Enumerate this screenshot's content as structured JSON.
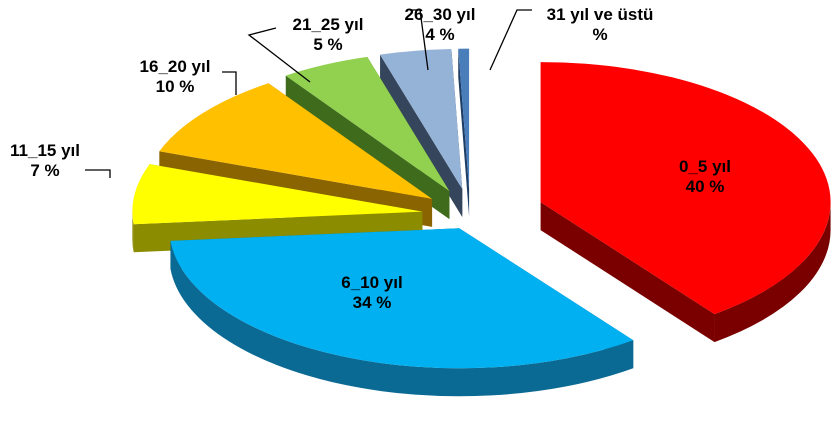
{
  "chart_data": {
    "type": "pie",
    "variant": "3d-exploded",
    "title": "",
    "unit": "%",
    "slices": [
      {
        "label": "0_5 yıl",
        "value": 40,
        "display_value": "40 %",
        "color": "#FF0000",
        "side_color": "#7A0000",
        "label_placement": "inside"
      },
      {
        "label": "6_10 yıl",
        "value": 34,
        "display_value": "34 %",
        "color": "#00B0F0",
        "side_color": "#0B6A93",
        "label_placement": "inside"
      },
      {
        "label": "11_15 yıl",
        "value": 7,
        "display_value": "7 %",
        "color": "#FFFF00",
        "side_color": "#8C8C00",
        "label_placement": "outside"
      },
      {
        "label": "16_20 yıl",
        "value": 10,
        "display_value": "10 %",
        "color": "#FFC000",
        "side_color": "#8A6400",
        "label_placement": "outside"
      },
      {
        "label": "21_25 yıl",
        "value": 5,
        "display_value": "5 %",
        "color": "#92D050",
        "side_color": "#3F6B1C",
        "label_placement": "outside"
      },
      {
        "label": "26_30 yıl",
        "value": 4,
        "display_value": "4 %",
        "color": "#95B3D7",
        "side_color": "#34455C",
        "label_placement": "outside"
      },
      {
        "label": "31 yıl ve üstü",
        "value": 0.6,
        "display_value": "%",
        "color": "#4A7EBB",
        "side_color": "#1F3E66",
        "label_placement": "outside"
      }
    ]
  }
}
